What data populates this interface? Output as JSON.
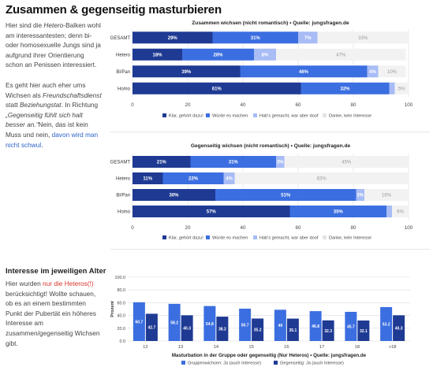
{
  "page": {
    "title": "Zusammen & gegenseitig masturbieren",
    "para1": {
      "pre": "Hier sind die ",
      "em1": "Hetero",
      "post": "-Balken wohl am interessantesten; denn bi- oder homosexuelle Jungs sind ja aufgrund ihrer Orientierung schon an Penissen interessiert."
    },
    "para2": {
      "pre": "Es geht hier auch eher ums Wichsen als ",
      "em1": "Freundschaftsdienst",
      "mid1": " statt ",
      "em2": "Beziehungstat",
      "mid2": ". In Richtung ",
      "em3": "„Gegenseitig fühlt sich halt besser an.“",
      "mid3": "Nein, das ist kein Muss und nein, ",
      "link": "davon wird man nicht schwul",
      "end": "."
    },
    "section2_title": "Interesse im jeweiligen Alter",
    "para3": {
      "pre": "Hier wurden ",
      "red": "nur die Heteros(!)",
      "post": " berücksichtigt! Wollte schauen, ob es an einem bestimmten Punkt der Pubertät ein höheres Interesse am zusammen/gegenseitig Wichsen gibt."
    }
  },
  "colors": {
    "c1": "#1f3a93",
    "c2": "#3b6ee0",
    "c3": "#a8bcf5",
    "c4": "#f2f2f2",
    "grid": "#dddddd",
    "dark": "#1f3a93",
    "light": "#3b6ee0"
  },
  "chart_data": [
    {
      "type": "bar",
      "orientation": "horizontal",
      "stacked": true,
      "title": "Zusammen wichsen (nicht romantisch) • Quelle: jungsfragen.de",
      "categories": [
        "GESAMT",
        "Hetero",
        "Bi/Pan",
        "Homo"
      ],
      "series": [
        {
          "name": "Klar, gehört dazu!",
          "values": [
            29,
            18,
            39,
            61
          ]
        },
        {
          "name": "Würde es machen",
          "values": [
            31,
            26,
            46,
            32
          ]
        },
        {
          "name": "Hab's gemacht, war aber doof",
          "values": [
            7,
            8,
            4,
            2
          ]
        },
        {
          "name": "Danke, kein Interesse",
          "values": [
            33,
            47,
            10,
            5
          ]
        }
      ],
      "labels": [
        [
          "29%",
          "31%",
          "7%",
          "33%"
        ],
        [
          "18%",
          "26%",
          "8%",
          "47%"
        ],
        [
          "39%",
          "46%",
          "4%",
          "10%"
        ],
        [
          "61%",
          "32%",
          "",
          "5%"
        ]
      ],
      "xlim": [
        0,
        100
      ],
      "xticks": [
        "0",
        "20",
        "40",
        "60",
        "80",
        "100"
      ],
      "legend": "bottom"
    },
    {
      "type": "bar",
      "orientation": "horizontal",
      "stacked": true,
      "title": "Gegenseitig wichsen (nicht romantisch) • Quelle: jungsfragen.de",
      "categories": [
        "GESAMT",
        "Hetero",
        "Bi/Pan",
        "Homo"
      ],
      "series": [
        {
          "name": "Klar, gehört dazu!",
          "values": [
            21,
            11,
            30,
            57
          ]
        },
        {
          "name": "Würde es machen",
          "values": [
            31,
            22,
            51,
            35
          ]
        },
        {
          "name": "Hab's gemacht, war aber doof",
          "values": [
            3,
            4,
            3,
            2
          ]
        },
        {
          "name": "Danke, kein Interesse",
          "values": [
            45,
            63,
            16,
            6
          ]
        }
      ],
      "labels": [
        [
          "21%",
          "31%",
          "3%",
          "45%"
        ],
        [
          "11%",
          "22%",
          "4%",
          "63%"
        ],
        [
          "30%",
          "51%",
          "3%",
          "16%"
        ],
        [
          "57%",
          "35%",
          "",
          "6%"
        ]
      ],
      "xlim": [
        0,
        100
      ],
      "xticks": [
        "0",
        "20",
        "40",
        "60",
        "80",
        "100"
      ],
      "legend": "bottom"
    },
    {
      "type": "bar",
      "orientation": "vertical",
      "title": "Masturbation in der Gruppe oder gegenseitig (Nur Heteros) • Quelle: jungsfragen.de",
      "ylabel": "Prozent",
      "categories": [
        "12",
        "13",
        "14",
        "15",
        "16",
        "17",
        "18",
        ">18"
      ],
      "series": [
        {
          "name": "Gruppenwichsen: Ja (auch Interesse)",
          "values": [
            60.7,
            58.2,
            54.8,
            50.7,
            49,
            46.8,
            45.7,
            53.2
          ],
          "labels": [
            "60.7",
            "58.2",
            "54.8",
            "50.7",
            "49",
            "46.8",
            "45.7",
            "53.2"
          ]
        },
        {
          "name": "Gegenseitig: Ja (auch Interesse)",
          "values": [
            42.7,
            40.3,
            38.2,
            35.2,
            35.1,
            32.3,
            32.1,
            40.3
          ],
          "labels": [
            "42.7",
            "40.3",
            "38.2",
            "35.2",
            "35.1",
            "32.3",
            "32.1",
            "40.3"
          ]
        }
      ],
      "ylim": [
        0,
        100
      ],
      "yticks": [
        "0.0",
        "20.0",
        "40.0",
        "60.0",
        "80.0",
        "100.0"
      ],
      "legend": "bottom"
    }
  ]
}
